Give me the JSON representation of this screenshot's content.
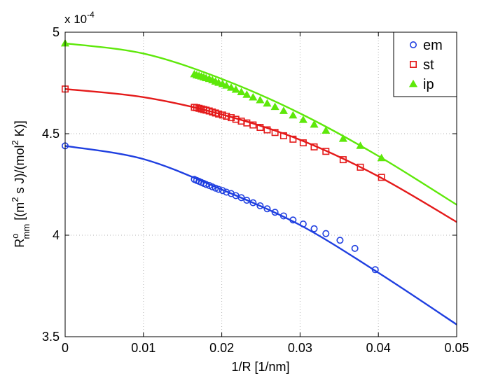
{
  "chart_data": {
    "type": "scatter",
    "xlabel": "1/R  [1/nm]",
    "ylabel": {
      "symbol": "R",
      "sup": "o",
      "sub": "mm",
      "units_part1": "[(m",
      "units_sup1": "2",
      "units_part2": " s J)/(mol",
      "units_sup2": "2",
      "units_part3": " K)]"
    },
    "y_multiplier": {
      "base": "x 10",
      "exponent": "-4"
    },
    "xlim": [
      0,
      0.05
    ],
    "ylim": [
      3.5,
      5.0
    ],
    "x_ticks": [
      0,
      0.01,
      0.02,
      0.03,
      0.04,
      0.05
    ],
    "x_tick_labels": [
      "0",
      "0.01",
      "0.02",
      "0.03",
      "0.04",
      "0.05"
    ],
    "y_ticks": [
      3.5,
      4.0,
      4.5,
      5.0
    ],
    "y_tick_labels": [
      "3.5",
      "4",
      "4.5",
      "5"
    ],
    "grid": true,
    "legend_position": "top-right",
    "series": [
      {
        "name": "em",
        "color": "#1f3fe0",
        "marker": "circle",
        "fit": {
          "x": [
            0,
            0.01,
            0.02,
            0.03,
            0.04,
            0.05
          ],
          "y": [
            4.44,
            4.375,
            4.225,
            4.05,
            3.815,
            3.56
          ]
        },
        "points": {
          "x": [
            0,
            0.0165,
            0.0168,
            0.0171,
            0.0174,
            0.0177,
            0.018,
            0.0184,
            0.0188,
            0.0192,
            0.0196,
            0.0201,
            0.0206,
            0.0212,
            0.0218,
            0.0225,
            0.0232,
            0.024,
            0.0249,
            0.0258,
            0.0268,
            0.0279,
            0.0291,
            0.0304,
            0.0318,
            0.0333,
            0.0351,
            0.037,
            0.0396
          ],
          "y": [
            4.44,
            4.275,
            4.27,
            4.265,
            4.26,
            4.255,
            4.25,
            4.245,
            4.238,
            4.232,
            4.226,
            4.22,
            4.212,
            4.205,
            4.195,
            4.185,
            4.172,
            4.16,
            4.145,
            4.13,
            4.113,
            4.095,
            4.075,
            4.055,
            4.032,
            4.008,
            3.975,
            3.935,
            3.83
          ]
        }
      },
      {
        "name": "st",
        "color": "#e41a1a",
        "marker": "square",
        "fit": {
          "x": [
            0,
            0.01,
            0.02,
            0.03,
            0.04,
            0.05
          ],
          "y": [
            4.72,
            4.68,
            4.595,
            4.47,
            4.29,
            4.065
          ]
        },
        "points": {
          "x": [
            0,
            0.0165,
            0.0168,
            0.0171,
            0.0174,
            0.0177,
            0.018,
            0.0184,
            0.0188,
            0.0192,
            0.0196,
            0.0201,
            0.0206,
            0.0212,
            0.0218,
            0.0225,
            0.0232,
            0.024,
            0.0249,
            0.0258,
            0.0268,
            0.0279,
            0.0291,
            0.0304,
            0.0318,
            0.0333,
            0.0355,
            0.0377,
            0.0404
          ],
          "y": [
            4.72,
            4.63,
            4.628,
            4.625,
            4.622,
            4.619,
            4.616,
            4.612,
            4.607,
            4.602,
            4.597,
            4.592,
            4.586,
            4.579,
            4.571,
            4.562,
            4.553,
            4.543,
            4.531,
            4.519,
            4.506,
            4.49,
            4.473,
            4.455,
            4.435,
            4.413,
            4.372,
            4.335,
            4.285
          ]
        }
      },
      {
        "name": "ip",
        "color": "#5ee80a",
        "marker": "triangle",
        "fit": {
          "x": [
            0,
            0.01,
            0.02,
            0.03,
            0.04,
            0.05
          ],
          "y": [
            4.945,
            4.895,
            4.77,
            4.6,
            4.39,
            4.15
          ]
        },
        "points": {
          "x": [
            0,
            0.0165,
            0.0168,
            0.0171,
            0.0174,
            0.0177,
            0.018,
            0.0184,
            0.0188,
            0.0192,
            0.0196,
            0.0201,
            0.0206,
            0.0212,
            0.0218,
            0.0225,
            0.0232,
            0.024,
            0.0249,
            0.0258,
            0.0268,
            0.0279,
            0.0291,
            0.0304,
            0.0318,
            0.0333,
            0.0355,
            0.0377,
            0.0404
          ],
          "y": [
            4.945,
            4.793,
            4.788,
            4.785,
            4.782,
            4.778,
            4.774,
            4.77,
            4.764,
            4.757,
            4.751,
            4.745,
            4.737,
            4.727,
            4.717,
            4.705,
            4.692,
            4.679,
            4.665,
            4.649,
            4.632,
            4.612,
            4.59,
            4.568,
            4.545,
            4.515,
            4.475,
            4.44,
            4.38
          ]
        }
      }
    ]
  }
}
